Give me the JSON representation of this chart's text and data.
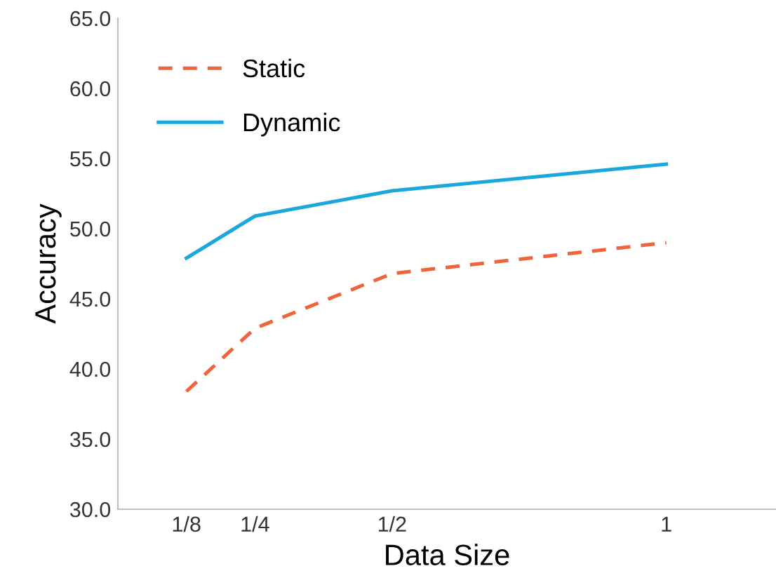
{
  "chart_data": {
    "type": "line",
    "xlabel": "Data Size",
    "ylabel": "Accuracy",
    "x": [
      0.125,
      0.25,
      0.5,
      1
    ],
    "series": [
      {
        "name": "Static",
        "color": "#f0643c",
        "line_style": "dashed",
        "values": [
          38.4,
          42.9,
          46.8,
          49.0
        ]
      },
      {
        "name": "Dynamic",
        "color": "#1aa7dc",
        "line_style": "solid",
        "values": [
          47.9,
          50.9,
          52.7,
          54.6
        ]
      }
    ],
    "xlim": [
      0,
      1.2
    ],
    "xticks": [
      {
        "value": 0.125,
        "label": "1/8"
      },
      {
        "value": 0.25,
        "label": "1/4"
      },
      {
        "value": 0.5,
        "label": "1/2"
      },
      1
    ],
    "ylim": [
      30,
      65
    ],
    "yticks": [
      {
        "value": 30,
        "label": "30.0"
      },
      {
        "value": 35,
        "label": "35.0"
      },
      {
        "value": 40,
        "label": "40.0"
      },
      {
        "value": 45,
        "label": "45.0"
      },
      {
        "value": 50,
        "label": "50.0"
      },
      {
        "value": 55,
        "label": "55.0"
      },
      {
        "value": 60,
        "label": "60.0"
      },
      {
        "value": 65,
        "label": "65.0"
      }
    ],
    "grid": false,
    "legend": "top left",
    "marker": "none"
  }
}
